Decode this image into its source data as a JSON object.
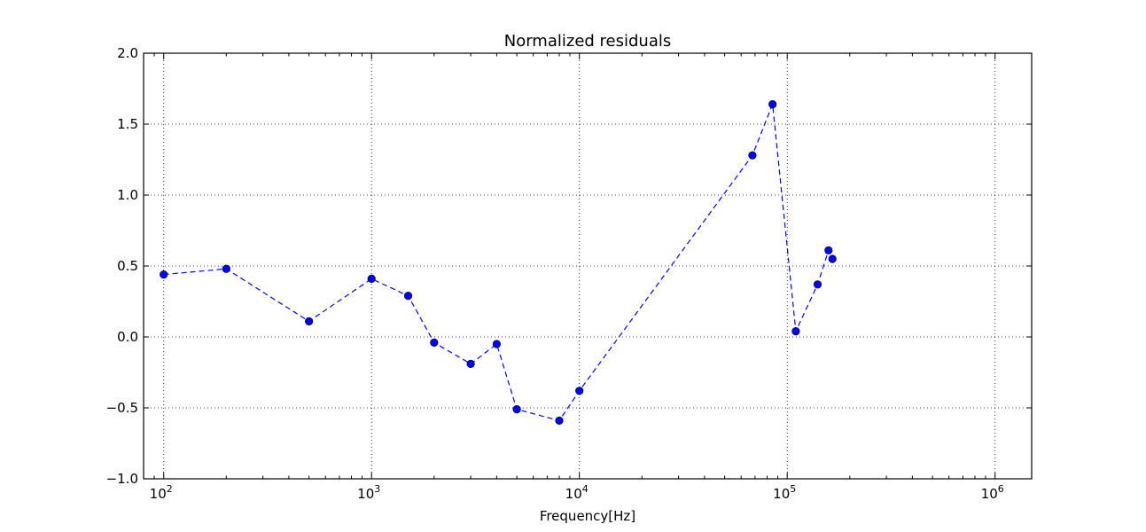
{
  "chart_data": {
    "type": "scatter",
    "title": "Normalized residuals",
    "xlabel": "Frequency[Hz]",
    "ylabel": "",
    "xscale": "log",
    "xlim": [
      80,
      1500000
    ],
    "ylim": [
      -1.0,
      2.0
    ],
    "grid": true,
    "legend": "none",
    "marker_color": "#0000ff",
    "line_style": "dashed",
    "x_ticks": [
      {
        "value": 100,
        "base": "10",
        "exp": "2"
      },
      {
        "value": 1000,
        "base": "10",
        "exp": "3"
      },
      {
        "value": 10000,
        "base": "10",
        "exp": "4"
      },
      {
        "value": 100000,
        "base": "10",
        "exp": "5"
      },
      {
        "value": 1000000,
        "base": "10",
        "exp": "6"
      }
    ],
    "y_ticks": [
      {
        "value": 2.0,
        "label": "2.0"
      },
      {
        "value": 1.5,
        "label": "1.5"
      },
      {
        "value": 1.0,
        "label": "1.0"
      },
      {
        "value": 0.5,
        "label": "0.5"
      },
      {
        "value": 0.0,
        "label": "0.0"
      },
      {
        "value": -0.5,
        "label": "−0.5"
      },
      {
        "value": -1.0,
        "label": "−1.0"
      }
    ],
    "series": [
      {
        "x": [
          100,
          200,
          500,
          1000,
          1500,
          2000,
          3000,
          4000,
          5000,
          8000,
          10000,
          68000,
          85000,
          110000,
          140000,
          158000,
          165000
        ],
        "y": [
          0.44,
          0.48,
          0.11,
          0.41,
          0.29,
          -0.04,
          -0.19,
          -0.05,
          -0.51,
          -0.59,
          -0.38,
          1.28,
          1.64,
          0.04,
          0.37,
          0.61,
          0.55
        ]
      }
    ]
  }
}
